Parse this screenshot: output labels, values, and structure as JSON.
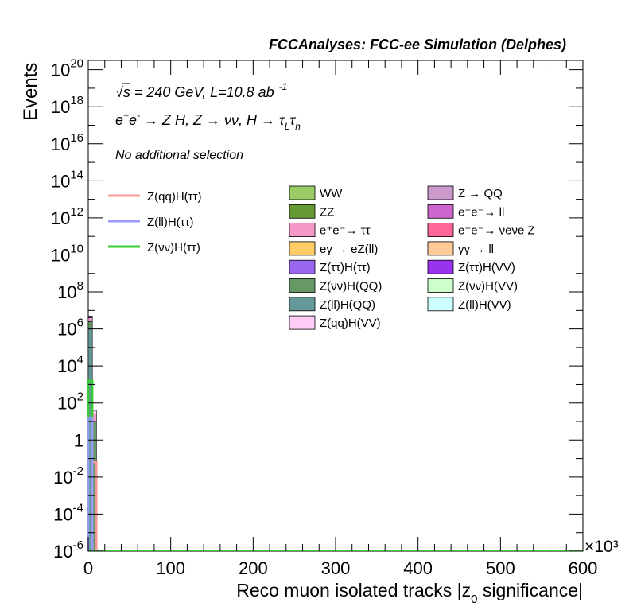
{
  "chart_data": {
    "type": "bar",
    "title": "FCCAnalyses: FCC-ee Simulation (Delphes)",
    "xlabel": "Reco muon isolated tracks |z_{0} significance|",
    "ylabel": "Events",
    "x_multiplier_label": "×10³",
    "xlim": [
      0,
      600
    ],
    "ylim_log10": [
      -6,
      20.5
    ],
    "y_scale": "log",
    "x_ticks": [
      {
        "v": 0,
        "label": "0"
      },
      {
        "v": 100,
        "label": "100"
      },
      {
        "v": 200,
        "label": "200"
      },
      {
        "v": 300,
        "label": "300"
      },
      {
        "v": 400,
        "label": "400"
      },
      {
        "v": 500,
        "label": "500"
      },
      {
        "v": 600,
        "label": "600"
      }
    ],
    "y_ticks": [
      {
        "e": -6,
        "label": "10",
        "sup": "-6"
      },
      {
        "e": -4,
        "label": "10",
        "sup": "-4"
      },
      {
        "e": -2,
        "label": "10",
        "sup": "-2"
      },
      {
        "e": 0,
        "label": "1",
        "sup": ""
      },
      {
        "e": 2,
        "label": "10",
        "sup": "2"
      },
      {
        "e": 4,
        "label": "10",
        "sup": "4"
      },
      {
        "e": 6,
        "label": "10",
        "sup": "6"
      },
      {
        "e": 8,
        "label": "10",
        "sup": "8"
      },
      {
        "e": 10,
        "label": "10",
        "sup": "10"
      },
      {
        "e": 12,
        "label": "10",
        "sup": "12"
      },
      {
        "e": 14,
        "label": "10",
        "sup": "14"
      },
      {
        "e": 16,
        "label": "10",
        "sup": "16"
      },
      {
        "e": 18,
        "label": "10",
        "sup": "18"
      },
      {
        "e": 20,
        "label": "10",
        "sup": "20"
      }
    ],
    "annotations": {
      "energy_line": "√s = 240 GeV, L=10.8 ab",
      "energy_sup": "-1",
      "process_line": "e⁺e⁻ → Z H, Z → νν, H → τLτh",
      "selection": "No additional selection"
    },
    "legend_placement": "top-right",
    "signals": [
      {
        "name": "Z(qq)H(ττ)",
        "color": "#f89a9a"
      },
      {
        "name": "Z(ll)H(ττ)",
        "color": "#9a9af8"
      },
      {
        "name": "Z(νν)H(ττ)",
        "color": "#33cc33"
      }
    ],
    "backgrounds": [
      {
        "name": "WW",
        "color": "#99cc66"
      },
      {
        "name": "ZZ",
        "color": "#669933"
      },
      {
        "name": "e⁺e⁻→ ττ",
        "color": "#f799c8"
      },
      {
        "name": "eγ → eZ(ll)",
        "color": "#ffcc66"
      },
      {
        "name": "Z(ττ)H(ττ)",
        "color": "#9966ee"
      },
      {
        "name": "Z(νν)H(QQ)",
        "color": "#669966"
      },
      {
        "name": "Z(ll)H(QQ)",
        "color": "#669999"
      },
      {
        "name": "Z(qq)H(VV)",
        "color": "#ffccf5"
      },
      {
        "name": "Z → QQ",
        "color": "#cc99cc"
      },
      {
        "name": "e⁺e⁻→ ll",
        "color": "#cc66cc"
      },
      {
        "name": "e⁺e⁻→ νeνe Z",
        "color": "#ff6699"
      },
      {
        "name": "γγ → ll",
        "color": "#ffcc99"
      },
      {
        "name": "Z(ττ)H(VV)",
        "color": "#9933ee"
      },
      {
        "name": "Z(νν)H(VV)",
        "color": "#ccffcc"
      },
      {
        "name": "Z(ll)H(VV)",
        "color": "#ccffff"
      }
    ],
    "stack_bins": [
      {
        "x0": 0,
        "x1": 5,
        "layers": [
          {
            "series": "Z(ll)H(QQ)",
            "top_log10": 6.0
          },
          {
            "series": "Z(νν)H(QQ)",
            "top_log10": 6.4
          },
          {
            "series": "e⁺e⁻→ ττ",
            "top_log10": 6.6
          },
          {
            "series": "Z(ττ)H(ττ)",
            "top_log10": 6.7
          }
        ]
      },
      {
        "x0": 5,
        "x1": 10,
        "layers": [
          {
            "series": "Z(νν)H(QQ)",
            "top_log10": 1.0
          },
          {
            "series": "e⁺e⁻→ ττ",
            "top_log10": 1.4
          },
          {
            "series": "Z(qq)H(VV)",
            "top_log10": 1.6
          }
        ]
      }
    ],
    "signal_lines": [
      {
        "series": "Z(νν)H(ττ)",
        "x0": 0,
        "x1": 5,
        "log10": 3.2
      },
      {
        "series": "Z(qq)H(ττ)",
        "x0": 5,
        "x1": 10,
        "log10": -1.2
      },
      {
        "series": "Z(ll)H(ττ)",
        "x0": 0,
        "x1": 5,
        "log10": 1.2
      }
    ]
  }
}
